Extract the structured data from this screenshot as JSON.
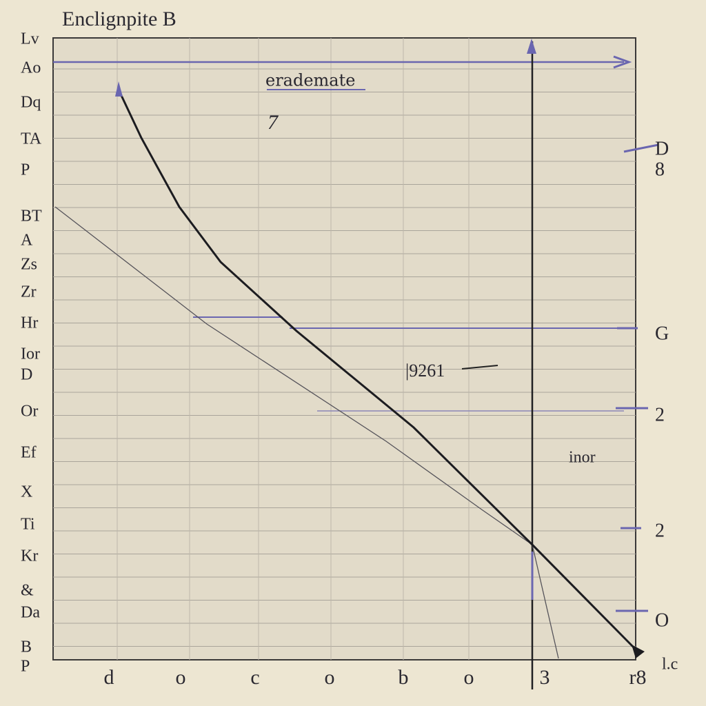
{
  "header": {
    "title": "Enclignpite B"
  },
  "annotations": {
    "top": "erademate",
    "mark": "7",
    "middle": "|9261",
    "right": "inor",
    "corner": "l.c"
  },
  "left_labels": [
    "Lv",
    "Ao",
    "Dq",
    "TA",
    "P",
    "BT",
    "A",
    "Zs",
    "Zr",
    "Hr",
    "Ior",
    "D",
    "Or",
    "Ef",
    "X",
    "Ti",
    "Kr",
    "&",
    "Da",
    "B",
    "P"
  ],
  "right_labels": [
    "D",
    "8",
    "G",
    "2",
    "2",
    "O"
  ],
  "bottom_labels": [
    "d",
    "o",
    "c",
    "o",
    "b",
    "o",
    "3",
    "r8"
  ]
}
